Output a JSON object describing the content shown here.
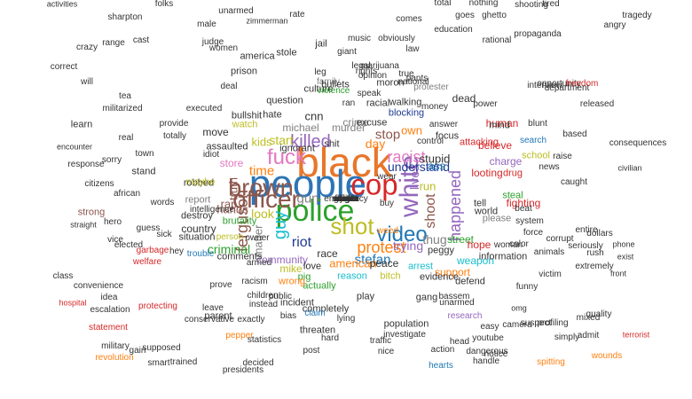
{
  "words": [
    {
      "text": "black",
      "color": "#e8762b"
    },
    {
      "text": "people",
      "color": "#2e74b5"
    },
    {
      "text": "police",
      "color": "#2ca02c"
    },
    {
      "text": "cop",
      "color": "#d62728"
    },
    {
      "text": "white",
      "color": "#9467bd"
    },
    {
      "text": "officer",
      "color": "#8c564b"
    },
    {
      "text": "brown",
      "color": "#8c564b"
    },
    {
      "text": "fuck",
      "color": "#e377c2"
    },
    {
      "text": "shot",
      "color": "#bcbd22"
    },
    {
      "text": "guy",
      "color": "#17becf"
    },
    {
      "text": "video",
      "color": "#1f77b4"
    },
    {
      "text": "killed",
      "color": "#9467bd"
    },
    {
      "text": "protest",
      "color": "#ff7f0e"
    },
    {
      "text": "racist",
      "color": "#e377c2"
    },
    {
      "text": "happened",
      "color": "#9467bd"
    },
    {
      "text": "shoot",
      "color": "#8c564b"
    },
    {
      "text": "lives",
      "color": "#9467bd"
    },
    {
      "text": "thug",
      "color": "#7f7f7f"
    },
    {
      "text": "ferguson",
      "color": "#8c564b"
    },
    {
      "text": "time",
      "color": "#ff7f0e"
    },
    {
      "text": "riot",
      "color": "#1f3a93"
    },
    {
      "text": "matter",
      "color": "#7f7f7f"
    },
    {
      "text": "look",
      "color": "#bcbd22"
    },
    {
      "text": "trying",
      "color": "#9467bd"
    },
    {
      "text": "criminal",
      "color": "#2ca02c"
    },
    {
      "text": "gun",
      "color": "#7f7f7f"
    },
    {
      "text": "hands",
      "color": "#8c564b"
    },
    {
      "text": "truth",
      "color": "#8c564b"
    },
    {
      "text": "rap",
      "color": "#8c564b"
    },
    {
      "text": "stop",
      "color": "#8c564b"
    },
    {
      "text": "own",
      "color": "#ff7f0e"
    },
    {
      "text": "day",
      "color": "#ff7f0e"
    },
    {
      "text": "cnn",
      "color": "#333333"
    },
    {
      "text": "stefan",
      "color": "#1f77b4"
    },
    {
      "text": "community",
      "color": "#9467bd"
    },
    {
      "text": "race",
      "color": "#333333"
    },
    {
      "text": "american",
      "color": "#ff7f0e"
    },
    {
      "text": "peace",
      "color": "#333333"
    },
    {
      "text": "crime",
      "color": "#7f7f7f"
    },
    {
      "text": "murder",
      "color": "#7f7f7f"
    },
    {
      "text": "understand",
      "color": "#1f3a93"
    },
    {
      "text": "run",
      "color": "#bcbd22"
    },
    {
      "text": "ass",
      "color": "#1f77b4"
    },
    {
      "text": "country",
      "color": "#333333"
    },
    {
      "text": "hate",
      "color": "#333333"
    },
    {
      "text": "michael",
      "color": "#7f7f7f"
    },
    {
      "text": "store",
      "color": "#e377c2"
    },
    {
      "text": "brutality",
      "color": "#2ca02c"
    },
    {
      "text": "mike",
      "color": "#bcbd22"
    },
    {
      "text": "peggy",
      "color": "#333333"
    },
    {
      "text": "street",
      "color": "#2ca02c"
    },
    {
      "text": "hope",
      "color": "#d62728"
    },
    {
      "text": "woman",
      "color": "#333333"
    },
    {
      "text": "support",
      "color": "#ff7f0e"
    },
    {
      "text": "stupid",
      "color": "#333333"
    },
    {
      "text": "kids",
      "color": "#bcbd22"
    },
    {
      "text": "start",
      "color": "#bcbd22"
    },
    {
      "text": "ignorant",
      "color": "#333333"
    },
    {
      "text": "blocking",
      "color": "#1f3a93"
    },
    {
      "text": "question",
      "color": "#333333"
    },
    {
      "text": "robbed",
      "color": "#333333"
    },
    {
      "text": "shit",
      "color": "#333333"
    },
    {
      "text": "love",
      "color": "#333333"
    },
    {
      "text": "pig",
      "color": "#2ca02c"
    },
    {
      "text": "actually",
      "color": "#2ca02c"
    },
    {
      "text": "reason",
      "color": "#17becf"
    },
    {
      "text": "bitch",
      "color": "#bcbd22"
    },
    {
      "text": "arrest",
      "color": "#17becf"
    },
    {
      "text": "weapon",
      "color": "#17becf"
    },
    {
      "text": "evidence",
      "color": "#333333"
    },
    {
      "text": "tell",
      "color": "#333333"
    },
    {
      "text": "world",
      "color": "#333333"
    },
    {
      "text": "steal",
      "color": "#2ca02c"
    },
    {
      "text": "charge",
      "color": "#9467bd"
    },
    {
      "text": "attacking",
      "color": "#d62728"
    },
    {
      "text": "please",
      "color": "#7f7f7f"
    },
    {
      "text": "information",
      "color": "#333333"
    },
    {
      "text": "color",
      "color": "#333333"
    },
    {
      "text": "defend",
      "color": "#333333"
    },
    {
      "text": "person",
      "color": "#bcbd22"
    },
    {
      "text": "comments",
      "color": "#333333"
    },
    {
      "text": "armed",
      "color": "#333333"
    },
    {
      "text": "wrong",
      "color": "#ff7f0e"
    },
    {
      "text": "completely",
      "color": "#333333"
    },
    {
      "text": "play",
      "color": "#333333"
    },
    {
      "text": "population",
      "color": "#333333"
    },
    {
      "text": "research",
      "color": "#9467bd"
    },
    {
      "text": "gang",
      "color": "#333333"
    },
    {
      "text": "bassem",
      "color": "#333333"
    },
    {
      "text": "unarmed",
      "color": "#333333"
    },
    {
      "text": "investigate",
      "color": "#333333"
    },
    {
      "text": "racism",
      "color": "#333333"
    },
    {
      "text": "public",
      "color": "#333333"
    },
    {
      "text": "incident",
      "color": "#333333"
    },
    {
      "text": "threaten",
      "color": "#333333"
    },
    {
      "text": "claim",
      "color": "#1f77b4"
    },
    {
      "text": "fighting",
      "color": "#d62728"
    },
    {
      "text": "system",
      "color": "#333333"
    },
    {
      "text": "force",
      "color": "#333333"
    },
    {
      "text": "corrupt",
      "color": "#333333"
    },
    {
      "text": "animals",
      "color": "#333333"
    },
    {
      "text": "school",
      "color": "#bcbd22"
    },
    {
      "text": "search",
      "color": "#1f77b4"
    },
    {
      "text": "blunt",
      "color": "#333333"
    },
    {
      "text": "based",
      "color": "#333333"
    },
    {
      "text": "dead",
      "color": "#333333"
    },
    {
      "text": "human",
      "color": "#d62728"
    },
    {
      "text": "believe",
      "color": "#d62728"
    },
    {
      "text": "looting",
      "color": "#d62728"
    },
    {
      "text": "drug",
      "color": "#d62728"
    },
    {
      "text": "situation",
      "color": "#333333"
    },
    {
      "text": "destroy",
      "color": "#333333"
    },
    {
      "text": "report",
      "color": "#7f7f7f"
    },
    {
      "text": "maybe",
      "color": "#bcbd22"
    },
    {
      "text": "idiot",
      "color": "#333333"
    },
    {
      "text": "assaulted",
      "color": "#333333"
    },
    {
      "text": "watch",
      "color": "#bcbd22"
    },
    {
      "text": "move",
      "color": "#333333"
    },
    {
      "text": "bullshit",
      "color": "#333333"
    },
    {
      "text": "family",
      "color": "#7f7f7f"
    },
    {
      "text": "culture",
      "color": "#333333"
    },
    {
      "text": "violence",
      "color": "#2ca02c"
    },
    {
      "text": "protester",
      "color": "#7f7f7f"
    },
    {
      "text": "national",
      "color": "#333333"
    },
    {
      "text": "money",
      "color": "#333333"
    },
    {
      "text": "power",
      "color": "#333333"
    },
    {
      "text": "interview",
      "color": "#333333"
    },
    {
      "text": "answer",
      "color": "#333333"
    },
    {
      "text": "speak",
      "color": "#333333"
    },
    {
      "text": "ran",
      "color": "#333333"
    },
    {
      "text": "walking",
      "color": "#333333"
    },
    {
      "text": "racial",
      "color": "#333333"
    },
    {
      "text": "focus",
      "color": "#333333"
    },
    {
      "text": "excuse",
      "color": "#333333"
    },
    {
      "text": "wounds",
      "color": "#ff7f0e"
    },
    {
      "text": "spitting",
      "color": "#ff7f0e"
    },
    {
      "text": "hearts",
      "color": "#1f77b4"
    },
    {
      "text": "notice",
      "color": "#333333"
    },
    {
      "text": "youtube",
      "color": "#333333"
    },
    {
      "text": "camera",
      "color": "#333333"
    },
    {
      "text": "omg",
      "color": "#333333"
    },
    {
      "text": "easy",
      "color": "#333333"
    },
    {
      "text": "suspect",
      "color": "#333333"
    },
    {
      "text": "admit",
      "color": "#333333"
    },
    {
      "text": "terrorist",
      "color": "#d62728"
    },
    {
      "text": "revolution",
      "color": "#ff7f0e"
    },
    {
      "text": "smart",
      "color": "#333333"
    },
    {
      "text": "trained",
      "color": "#333333"
    },
    {
      "text": "statement",
      "color": "#d62728"
    },
    {
      "text": "escalation",
      "color": "#333333"
    },
    {
      "text": "idea",
      "color": "#333333"
    },
    {
      "text": "convenience",
      "color": "#333333"
    },
    {
      "text": "hospital",
      "color": "#d62728"
    },
    {
      "text": "class",
      "color": "#333333"
    },
    {
      "text": "straight",
      "color": "#333333"
    },
    {
      "text": "strong",
      "color": "#8c564b"
    },
    {
      "text": "stand",
      "color": "#333333"
    },
    {
      "text": "citizens",
      "color": "#333333"
    },
    {
      "text": "sorry",
      "color": "#333333"
    },
    {
      "text": "response",
      "color": "#333333"
    },
    {
      "text": "encounter",
      "color": "#333333"
    },
    {
      "text": "learn",
      "color": "#333333"
    },
    {
      "text": "activities",
      "color": "#333333"
    },
    {
      "text": "sharpton",
      "color": "#333333"
    },
    {
      "text": "judge",
      "color": "#333333"
    },
    {
      "text": "zimmerman",
      "color": "#333333"
    },
    {
      "text": "education",
      "color": "#333333"
    },
    {
      "text": "propaganda",
      "color": "#333333"
    },
    {
      "text": "rational",
      "color": "#333333"
    },
    {
      "text": "opportunity",
      "color": "#333333"
    },
    {
      "text": "freedom",
      "color": "#d62728"
    },
    {
      "text": "tragedy",
      "color": "#333333"
    },
    {
      "text": "angry",
      "color": "#333333"
    },
    {
      "text": "released",
      "color": "#333333"
    },
    {
      "text": "department",
      "color": "#333333"
    },
    {
      "text": "consequences",
      "color": "#333333"
    },
    {
      "text": "civilian",
      "color": "#333333"
    },
    {
      "text": "dollars",
      "color": "#333333"
    },
    {
      "text": "phone",
      "color": "#333333"
    },
    {
      "text": "exist",
      "color": "#333333"
    },
    {
      "text": "front",
      "color": "#333333"
    },
    {
      "text": "quality",
      "color": "#333333"
    },
    {
      "text": "mixed",
      "color": "#333333"
    },
    {
      "text": "profiling",
      "color": "#333333"
    },
    {
      "text": "simply",
      "color": "#333333"
    },
    {
      "text": "conservative",
      "color": "#333333"
    },
    {
      "text": "leave",
      "color": "#333333"
    },
    {
      "text": "parent",
      "color": "#333333"
    },
    {
      "text": "exactly",
      "color": "#333333"
    },
    {
      "text": "pepper",
      "color": "#ff7f0e"
    },
    {
      "text": "statistics",
      "color": "#333333"
    },
    {
      "text": "presidents",
      "color": "#333333"
    },
    {
      "text": "decided",
      "color": "#333333"
    },
    {
      "text": "gain",
      "color": "#333333"
    },
    {
      "text": "supposed",
      "color": "#333333"
    },
    {
      "text": "military",
      "color": "#333333"
    },
    {
      "text": "welfare",
      "color": "#d62728"
    },
    {
      "text": "protecting",
      "color": "#d62728"
    },
    {
      "text": "funny",
      "color": "#333333"
    },
    {
      "text": "victim",
      "color": "#333333"
    },
    {
      "text": "entire",
      "color": "#333333"
    },
    {
      "text": "seriously",
      "color": "#333333"
    },
    {
      "text": "extremely",
      "color": "#333333"
    },
    {
      "text": "rush",
      "color": "#333333"
    },
    {
      "text": "pants",
      "color": "#333333"
    },
    {
      "text": "mind",
      "color": "#333333"
    },
    {
      "text": "sick",
      "color": "#333333"
    },
    {
      "text": "guess",
      "color": "#333333"
    },
    {
      "text": "words",
      "color": "#333333"
    },
    {
      "text": "african",
      "color": "#333333"
    },
    {
      "text": "america",
      "color": "#333333"
    },
    {
      "text": "prison",
      "color": "#333333"
    },
    {
      "text": "stole",
      "color": "#333333"
    },
    {
      "text": "jail",
      "color": "#333333"
    },
    {
      "text": "bullets",
      "color": "#333333"
    },
    {
      "text": "music",
      "color": "#333333"
    },
    {
      "text": "moron",
      "color": "#333333"
    },
    {
      "text": "obviously",
      "color": "#333333"
    },
    {
      "text": "true",
      "color": "#333333"
    },
    {
      "text": "opinion",
      "color": "#333333"
    },
    {
      "text": "rights",
      "color": "#333333"
    },
    {
      "text": "marijuana",
      "color": "#333333"
    },
    {
      "text": "legal",
      "color": "#333333"
    },
    {
      "text": "giant",
      "color": "#333333"
    },
    {
      "text": "comes",
      "color": "#333333"
    },
    {
      "text": "ghetto",
      "color": "#333333"
    },
    {
      "text": "goes",
      "color": "#333333"
    },
    {
      "text": "unarmed",
      "color": "#333333"
    },
    {
      "text": "rate",
      "color": "#333333"
    },
    {
      "text": "total",
      "color": "#333333"
    },
    {
      "text": "nothing",
      "color": "#333333"
    },
    {
      "text": "shooting",
      "color": "#333333"
    },
    {
      "text": "tired",
      "color": "#333333"
    },
    {
      "text": "folks",
      "color": "#333333"
    },
    {
      "text": "male",
      "color": "#333333"
    },
    {
      "text": "cast",
      "color": "#333333"
    },
    {
      "text": "crazy",
      "color": "#333333"
    },
    {
      "text": "range",
      "color": "#333333"
    },
    {
      "text": "correct",
      "color": "#333333"
    },
    {
      "text": "will",
      "color": "#333333"
    },
    {
      "text": "tea",
      "color": "#333333"
    },
    {
      "text": "militarized",
      "color": "#333333"
    },
    {
      "text": "provide",
      "color": "#333333"
    },
    {
      "text": "totally",
      "color": "#333333"
    },
    {
      "text": "hero",
      "color": "#333333"
    },
    {
      "text": "vice",
      "color": "#333333"
    },
    {
      "text": "elected",
      "color": "#333333"
    },
    {
      "text": "garbage",
      "color": "#d62728"
    },
    {
      "text": "hey",
      "color": "#333333"
    },
    {
      "text": "prove",
      "color": "#333333"
    },
    {
      "text": "children",
      "color": "#333333"
    },
    {
      "text": "instead",
      "color": "#333333"
    },
    {
      "text": "bias",
      "color": "#333333"
    },
    {
      "text": "lying",
      "color": "#333333"
    },
    {
      "text": "hard",
      "color": "#333333"
    },
    {
      "text": "post",
      "color": "#333333"
    },
    {
      "text": "traffic",
      "color": "#333333"
    },
    {
      "text": "nice",
      "color": "#333333"
    },
    {
      "text": "action",
      "color": "#333333"
    },
    {
      "text": "head",
      "color": "#333333"
    },
    {
      "text": "dangerous",
      "color": "#333333"
    },
    {
      "text": "handle",
      "color": "#333333"
    },
    {
      "text": "beat",
      "color": "#333333"
    },
    {
      "text": "caught",
      "color": "#333333"
    },
    {
      "text": "raise",
      "color": "#333333"
    },
    {
      "text": "news",
      "color": "#333333"
    },
    {
      "text": "wear",
      "color": "#333333"
    },
    {
      "text": "buy",
      "color": "#333333"
    },
    {
      "text": "weed",
      "color": "#ff7f0e"
    },
    {
      "text": "trouble",
      "color": "#1f77b4"
    },
    {
      "text": "intelligence",
      "color": "#333333"
    },
    {
      "text": "women",
      "color": "#333333"
    },
    {
      "text": "executed",
      "color": "#333333"
    },
    {
      "text": "real",
      "color": "#333333"
    },
    {
      "text": "town",
      "color": "#333333"
    },
    {
      "text": "deal",
      "color": "#333333"
    },
    {
      "text": "leg",
      "color": "#333333"
    },
    {
      "text": "law",
      "color": "#333333"
    },
    {
      "text": "control",
      "color": "#333333"
    },
    {
      "text": "owner",
      "color": "#333333"
    },
    {
      "text": "fire",
      "color": "#333333"
    },
    {
      "text": "car",
      "color": "#333333"
    },
    {
      "text": "rich",
      "color": "#333333"
    },
    {
      "text": "job",
      "color": "#333333"
    },
    {
      "text": "die",
      "color": "#333333"
    },
    {
      "text": "half",
      "color": "#333333"
    },
    {
      "text": "emergency",
      "color": "#333333"
    },
    {
      "text": "gonna",
      "color": "#333333"
    },
    {
      "text": "forget",
      "color": "#333333"
    },
    {
      "text": "wanna",
      "color": "#333333"
    },
    {
      "text": "shame",
      "color": "#333333"
    },
    {
      "text": "cool",
      "color": "#333333"
    },
    {
      "text": "fact",
      "color": "#333333"
    },
    {
      "text": "issue",
      "color": "#333333"
    },
    {
      "text": "matter",
      "color": "#333333"
    }
  ]
}
